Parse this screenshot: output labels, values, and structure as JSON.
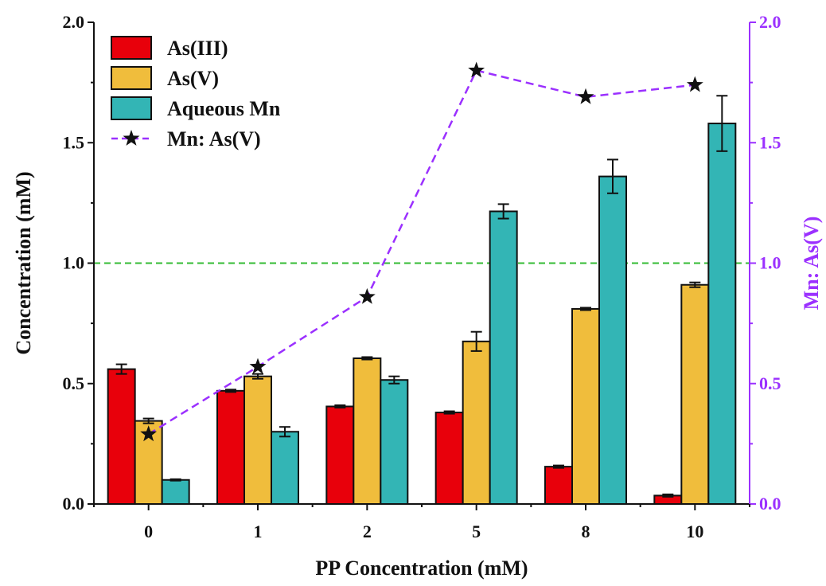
{
  "chart_data": {
    "type": "bar",
    "categories": [
      "0",
      "1",
      "2",
      "5",
      "8",
      "10"
    ],
    "xlabel": "PP Concentration (mM)",
    "ylabel": "Concentration (mM)",
    "ylabel_right": "Mn: As(V)",
    "ylim": [
      0,
      2.0
    ],
    "ylim_right": [
      0,
      2.0
    ],
    "yticks": [
      "0.0",
      "0.5",
      "1.0",
      "1.5",
      "2.0"
    ],
    "yticks_right": [
      "0.0",
      "0.5",
      "1.0",
      "1.5",
      "2.0"
    ],
    "series": [
      {
        "name": "As(III)",
        "color": "#e8000b",
        "values": [
          0.56,
          0.47,
          0.405,
          0.38,
          0.155,
          0.035
        ],
        "errors": [
          0.02,
          0.005,
          0.005,
          0.005,
          0.005,
          0.005
        ]
      },
      {
        "name": "As(V)",
        "color": "#f0bd3c",
        "values": [
          0.345,
          0.53,
          0.605,
          0.675,
          0.81,
          0.91
        ],
        "errors": [
          0.01,
          0.01,
          0.005,
          0.04,
          0.005,
          0.01
        ]
      },
      {
        "name": "Aqueous Mn",
        "color": "#33b5b5",
        "values": [
          0.1,
          0.3,
          0.515,
          1.215,
          1.36,
          1.58
        ],
        "errors": [
          0.003,
          0.02,
          0.015,
          0.03,
          0.07,
          0.115
        ]
      }
    ],
    "line_series": {
      "name": "Mn: As(V)",
      "color": "#9b30ff",
      "axis": "right",
      "marker": "star",
      "values": [
        0.29,
        0.57,
        0.86,
        1.8,
        1.69,
        1.74
      ]
    },
    "reference_line": {
      "y": 1.0,
      "color": "#33bb33",
      "style": "dashed"
    },
    "legend_position": "top-left",
    "grid": false
  }
}
